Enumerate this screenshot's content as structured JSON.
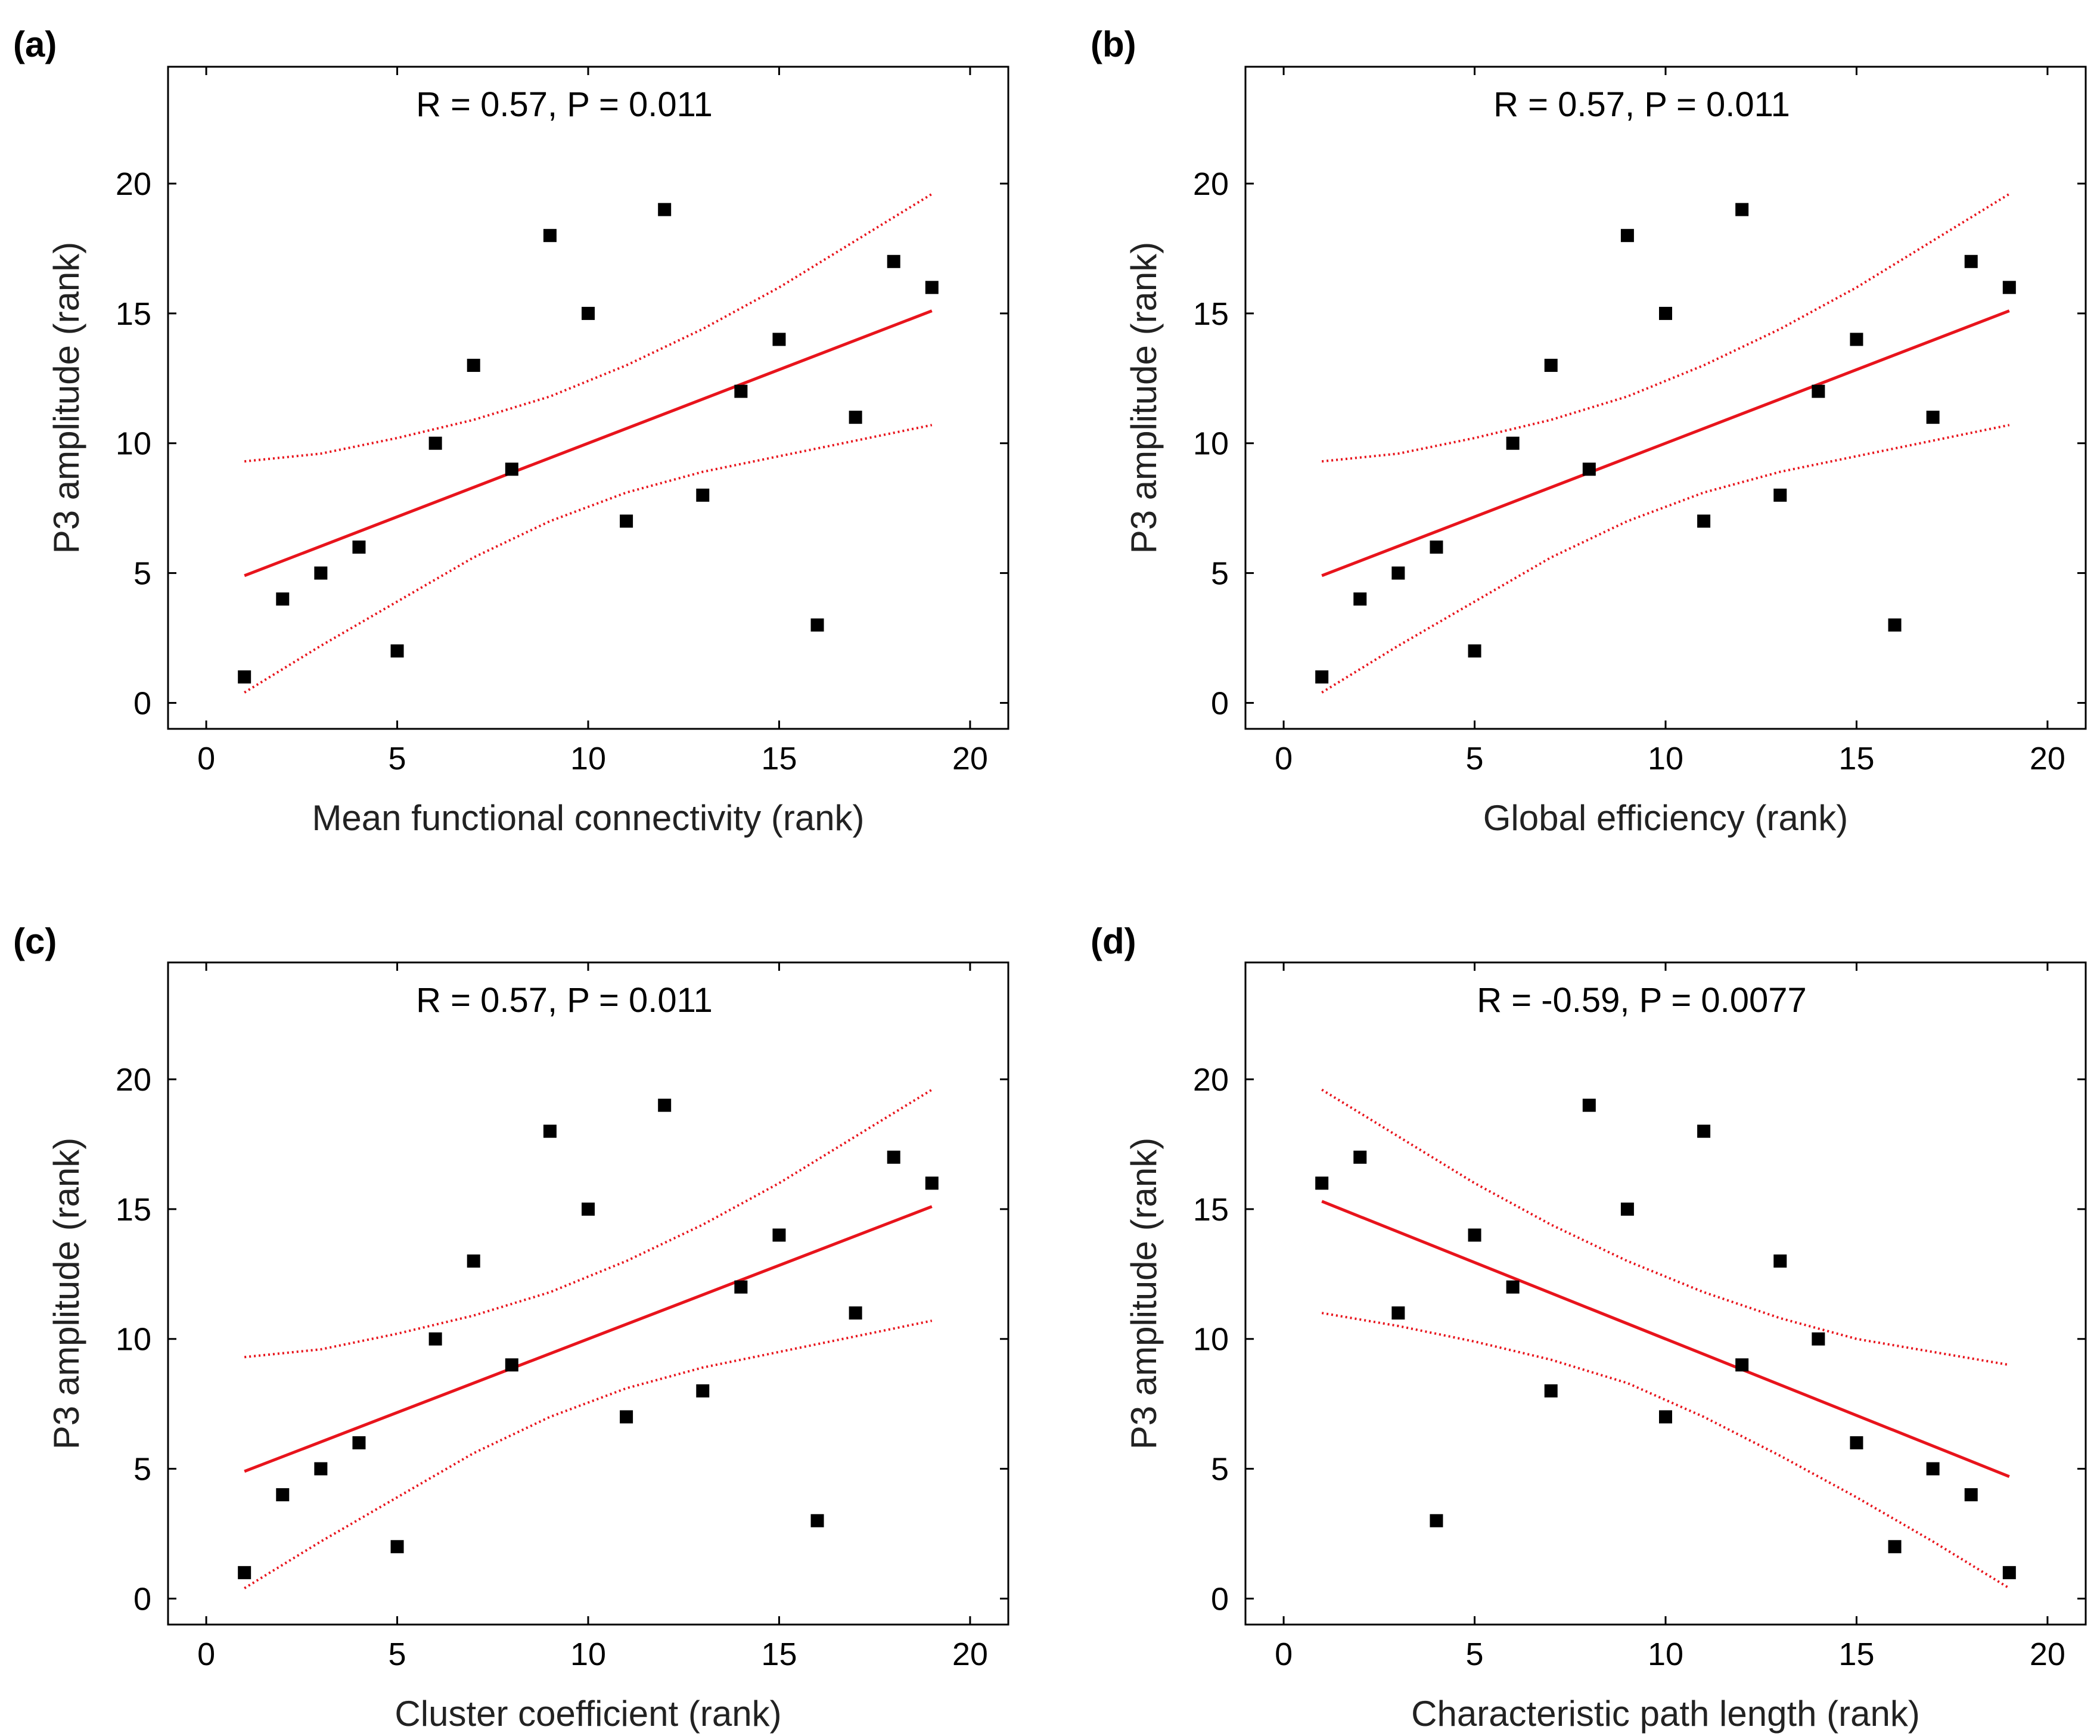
{
  "chart_data": [
    {
      "type": "scatter",
      "panel_label": "(a)",
      "annotation": "R = 0.57, P = 0.011",
      "xlabel": "Mean functional connectivity (rank)",
      "ylabel": "P3 amplitude (rank)",
      "xlim": [
        -1,
        21
      ],
      "ylim": [
        -1,
        24.5
      ],
      "xticks": [
        0,
        5,
        10,
        15,
        20
      ],
      "yticks": [
        0,
        5,
        10,
        15,
        20
      ],
      "colors": {
        "points": "#000000",
        "fit": "#e8141c"
      },
      "points": [
        [
          1,
          1
        ],
        [
          2,
          4
        ],
        [
          3,
          5
        ],
        [
          4,
          6
        ],
        [
          5,
          2
        ],
        [
          6,
          10
        ],
        [
          7,
          13
        ],
        [
          8,
          9
        ],
        [
          9,
          18
        ],
        [
          10,
          15
        ],
        [
          11,
          7
        ],
        [
          12,
          19
        ],
        [
          13,
          8
        ],
        [
          14,
          12
        ],
        [
          15,
          14
        ],
        [
          16,
          3
        ],
        [
          17,
          11
        ],
        [
          18,
          17
        ],
        [
          19,
          16
        ]
      ],
      "fit_line": [
        [
          1,
          4.9
        ],
        [
          19,
          15.1
        ]
      ],
      "ci_upper": [
        [
          1,
          9.3
        ],
        [
          3,
          9.6
        ],
        [
          5,
          10.2
        ],
        [
          7,
          10.9
        ],
        [
          9,
          11.8
        ],
        [
          11,
          13.0
        ],
        [
          13,
          14.4
        ],
        [
          15,
          16.0
        ],
        [
          17,
          17.8
        ],
        [
          19,
          19.6
        ]
      ],
      "ci_lower": [
        [
          1,
          0.4
        ],
        [
          3,
          2.2
        ],
        [
          5,
          3.9
        ],
        [
          7,
          5.6
        ],
        [
          9,
          7.0
        ],
        [
          11,
          8.1
        ],
        [
          13,
          8.9
        ],
        [
          15,
          9.5
        ],
        [
          17,
          10.1
        ],
        [
          19,
          10.7
        ]
      ]
    },
    {
      "type": "scatter",
      "panel_label": "(b)",
      "annotation": "R = 0.57, P = 0.011",
      "xlabel": "Global efficiency (rank)",
      "ylabel": "P3 amplitude (rank)",
      "xlim": [
        -1,
        21
      ],
      "ylim": [
        -1,
        24.5
      ],
      "xticks": [
        0,
        5,
        10,
        15,
        20
      ],
      "yticks": [
        0,
        5,
        10,
        15,
        20
      ],
      "colors": {
        "points": "#000000",
        "fit": "#e8141c"
      },
      "points": [
        [
          1,
          1
        ],
        [
          2,
          4
        ],
        [
          3,
          5
        ],
        [
          4,
          6
        ],
        [
          5,
          2
        ],
        [
          6,
          10
        ],
        [
          7,
          13
        ],
        [
          8,
          9
        ],
        [
          9,
          18
        ],
        [
          10,
          15
        ],
        [
          11,
          7
        ],
        [
          12,
          19
        ],
        [
          13,
          8
        ],
        [
          14,
          12
        ],
        [
          15,
          14
        ],
        [
          16,
          3
        ],
        [
          17,
          11
        ],
        [
          18,
          17
        ],
        [
          19,
          16
        ]
      ],
      "fit_line": [
        [
          1,
          4.9
        ],
        [
          19,
          15.1
        ]
      ],
      "ci_upper": [
        [
          1,
          9.3
        ],
        [
          3,
          9.6
        ],
        [
          5,
          10.2
        ],
        [
          7,
          10.9
        ],
        [
          9,
          11.8
        ],
        [
          11,
          13.0
        ],
        [
          13,
          14.4
        ],
        [
          15,
          16.0
        ],
        [
          17,
          17.8
        ],
        [
          19,
          19.6
        ]
      ],
      "ci_lower": [
        [
          1,
          0.4
        ],
        [
          3,
          2.2
        ],
        [
          5,
          3.9
        ],
        [
          7,
          5.6
        ],
        [
          9,
          7.0
        ],
        [
          11,
          8.1
        ],
        [
          13,
          8.9
        ],
        [
          15,
          9.5
        ],
        [
          17,
          10.1
        ],
        [
          19,
          10.7
        ]
      ]
    },
    {
      "type": "scatter",
      "panel_label": "(c)",
      "annotation": "R = 0.57, P = 0.011",
      "xlabel": "Cluster coefficient (rank)",
      "ylabel": "P3 amplitude (rank)",
      "xlim": [
        -1,
        21
      ],
      "ylim": [
        -1,
        24.5
      ],
      "xticks": [
        0,
        5,
        10,
        15,
        20
      ],
      "yticks": [
        0,
        5,
        10,
        15,
        20
      ],
      "colors": {
        "points": "#000000",
        "fit": "#e8141c"
      },
      "points": [
        [
          1,
          1
        ],
        [
          2,
          4
        ],
        [
          3,
          5
        ],
        [
          4,
          6
        ],
        [
          5,
          2
        ],
        [
          6,
          10
        ],
        [
          7,
          13
        ],
        [
          8,
          9
        ],
        [
          9,
          18
        ],
        [
          10,
          15
        ],
        [
          11,
          7
        ],
        [
          12,
          19
        ],
        [
          13,
          8
        ],
        [
          14,
          12
        ],
        [
          15,
          14
        ],
        [
          16,
          3
        ],
        [
          17,
          11
        ],
        [
          18,
          17
        ],
        [
          19,
          16
        ]
      ],
      "fit_line": [
        [
          1,
          4.9
        ],
        [
          19,
          15.1
        ]
      ],
      "ci_upper": [
        [
          1,
          9.3
        ],
        [
          3,
          9.6
        ],
        [
          5,
          10.2
        ],
        [
          7,
          10.9
        ],
        [
          9,
          11.8
        ],
        [
          11,
          13.0
        ],
        [
          13,
          14.4
        ],
        [
          15,
          16.0
        ],
        [
          17,
          17.8
        ],
        [
          19,
          19.6
        ]
      ],
      "ci_lower": [
        [
          1,
          0.4
        ],
        [
          3,
          2.2
        ],
        [
          5,
          3.9
        ],
        [
          7,
          5.6
        ],
        [
          9,
          7.0
        ],
        [
          11,
          8.1
        ],
        [
          13,
          8.9
        ],
        [
          15,
          9.5
        ],
        [
          17,
          10.1
        ],
        [
          19,
          10.7
        ]
      ]
    },
    {
      "type": "scatter",
      "panel_label": "(d)",
      "annotation": "R = -0.59, P = 0.0077",
      "xlabel": "Characteristic path length (rank)",
      "ylabel": "P3 amplitude (rank)",
      "xlim": [
        -1,
        21
      ],
      "ylim": [
        -1,
        24.5
      ],
      "xticks": [
        0,
        5,
        10,
        15,
        20
      ],
      "yticks": [
        0,
        5,
        10,
        15,
        20
      ],
      "colors": {
        "points": "#000000",
        "fit": "#e8141c"
      },
      "points": [
        [
          1,
          16
        ],
        [
          2,
          17
        ],
        [
          3,
          11
        ],
        [
          4,
          3
        ],
        [
          5,
          14
        ],
        [
          6,
          12
        ],
        [
          7,
          8
        ],
        [
          8,
          19
        ],
        [
          9,
          15
        ],
        [
          10,
          7
        ],
        [
          11,
          18
        ],
        [
          12,
          9
        ],
        [
          13,
          13
        ],
        [
          14,
          10
        ],
        [
          15,
          6
        ],
        [
          16,
          2
        ],
        [
          17,
          5
        ],
        [
          18,
          4
        ],
        [
          19,
          1
        ]
      ],
      "fit_line": [
        [
          1,
          15.3
        ],
        [
          19,
          4.7
        ]
      ],
      "ci_upper": [
        [
          1,
          19.6
        ],
        [
          3,
          17.8
        ],
        [
          5,
          16.0
        ],
        [
          7,
          14.4
        ],
        [
          9,
          13.0
        ],
        [
          11,
          11.8
        ],
        [
          13,
          10.8
        ],
        [
          15,
          10.0
        ],
        [
          17,
          9.5
        ],
        [
          19,
          9.0
        ]
      ],
      "ci_lower": [
        [
          1,
          11.0
        ],
        [
          3,
          10.5
        ],
        [
          5,
          9.9
        ],
        [
          7,
          9.2
        ],
        [
          9,
          8.3
        ],
        [
          11,
          7.0
        ],
        [
          13,
          5.5
        ],
        [
          15,
          3.9
        ],
        [
          17,
          2.2
        ],
        [
          19,
          0.4
        ]
      ]
    }
  ]
}
